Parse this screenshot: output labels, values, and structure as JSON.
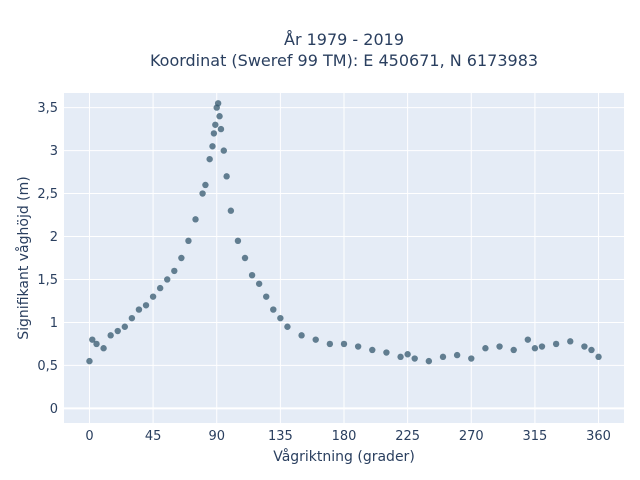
{
  "chart_data": {
    "type": "scatter",
    "title_line1": "År 1979 - 2019",
    "title_line2": "Koordinat (Sweref 99 TM): E 450671, N 6173983",
    "xlabel": "Vågriktning (grader)",
    "ylabel": "Signifikant våghöjd (m)",
    "xlim": [
      -18,
      378
    ],
    "ylim": [
      -0.17,
      3.67
    ],
    "xticks": [
      0,
      45,
      90,
      135,
      180,
      225,
      270,
      315,
      360
    ],
    "xtick_labels": [
      "0",
      "45",
      "90",
      "135",
      "180",
      "225",
      "270",
      "315",
      "360"
    ],
    "yticks": [
      0,
      0.5,
      1,
      1.5,
      2,
      2.5,
      3,
      3.5
    ],
    "ytick_labels": [
      "0",
      "0,5",
      "1",
      "1,5",
      "2",
      "2,5",
      "3",
      "3,5"
    ],
    "grid": true,
    "series": [
      {
        "x": [
          0,
          2,
          5,
          10,
          15,
          20,
          25,
          30,
          35,
          40,
          45,
          50,
          55,
          60,
          65,
          70,
          75,
          80,
          82,
          85,
          87,
          88,
          89,
          90,
          91,
          92,
          93,
          95,
          97,
          100,
          105,
          110,
          115,
          120,
          125,
          130,
          135,
          140,
          150,
          160,
          170,
          180,
          190,
          200,
          210,
          220,
          225,
          230,
          240,
          250,
          260,
          270,
          280,
          290,
          300,
          310,
          315,
          320,
          330,
          340,
          350,
          355,
          360
        ],
        "y": [
          0.55,
          0.8,
          0.75,
          0.7,
          0.85,
          0.9,
          0.95,
          1.05,
          1.15,
          1.2,
          1.3,
          1.4,
          1.5,
          1.6,
          1.75,
          1.95,
          2.2,
          2.5,
          2.6,
          2.9,
          3.05,
          3.2,
          3.3,
          3.5,
          3.55,
          3.4,
          3.25,
          3.0,
          2.7,
          2.3,
          1.95,
          1.75,
          1.55,
          1.45,
          1.3,
          1.15,
          1.05,
          0.95,
          0.85,
          0.8,
          0.75,
          0.75,
          0.72,
          0.68,
          0.65,
          0.6,
          0.63,
          0.58,
          0.55,
          0.6,
          0.62,
          0.58,
          0.7,
          0.72,
          0.68,
          0.8,
          0.7,
          0.72,
          0.75,
          0.78,
          0.72,
          0.68,
          0.6
        ],
        "color": "#34586e"
      }
    ]
  }
}
